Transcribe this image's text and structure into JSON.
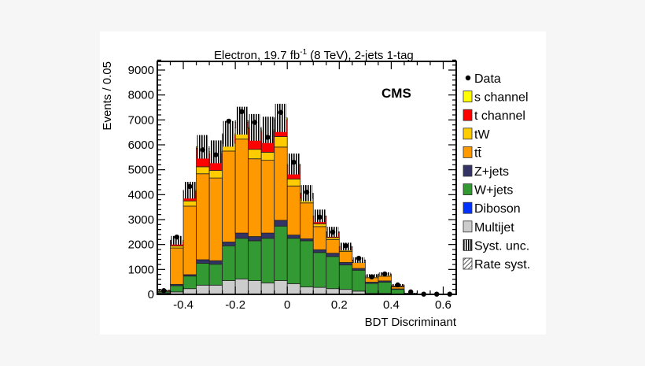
{
  "chart_data": {
    "type": "bar",
    "stacked": true,
    "title": "Electron, 19.7 fb",
    "title_sup": "-1",
    "title_rest": " (8 TeV), 2-jets 1-tag",
    "label": "CMS",
    "xlabel": "BDT Discriminant",
    "ylabel": "Events / 0.05",
    "xlim": [
      -0.5,
      0.65
    ],
    "ylim": [
      0,
      9500
    ],
    "bin_width": 0.05,
    "x_ticks": [
      "-0.4",
      "-0.2",
      "0",
      "0.2",
      "0.4",
      "0.6"
    ],
    "x_tick_values": [
      -0.4,
      -0.2,
      0,
      0.2,
      0.4,
      0.6
    ],
    "y_ticks": [
      "0",
      "1000",
      "2000",
      "3000",
      "4000",
      "5000",
      "6000",
      "7000",
      "8000",
      "9000"
    ],
    "y_tick_values": [
      0,
      1000,
      2000,
      3000,
      4000,
      5000,
      6000,
      7000,
      8000,
      9000
    ],
    "grid": false,
    "legend_placement": "right",
    "bin_edges_low": [
      -0.5,
      -0.45,
      -0.4,
      -0.35,
      -0.3,
      -0.25,
      -0.2,
      -0.15,
      -0.1,
      -0.05,
      0,
      0.05,
      0.1,
      0.15,
      0.2,
      0.25,
      0.3,
      0.35,
      0.4,
      0.45,
      0.5,
      0.55,
      0.6
    ],
    "series": [
      {
        "name": "Multijet",
        "color": "#cccccc",
        "values": [
          50,
          100,
          230,
          370,
          370,
          550,
          620,
          550,
          460,
          550,
          430,
          300,
          280,
          230,
          200,
          130,
          40,
          40,
          10,
          0,
          0,
          0,
          0
        ]
      },
      {
        "name": "Diboson",
        "color": "#0033ff",
        "values": [
          0,
          0,
          0,
          0,
          0,
          0,
          0,
          0,
          0,
          0,
          0,
          0,
          0,
          0,
          0,
          0,
          0,
          0,
          0,
          0,
          0,
          0,
          0
        ]
      },
      {
        "name": "W+jets",
        "color": "#339933",
        "values": [
          50,
          250,
          505,
          880,
          840,
          1400,
          1630,
          1600,
          1790,
          2190,
          1820,
          1850,
          1400,
          1290,
          980,
          840,
          400,
          450,
          190,
          40,
          10,
          0,
          0
        ]
      },
      {
        "name": "Z+jets",
        "color": "#333366",
        "values": [
          10,
          50,
          55,
          140,
          140,
          150,
          210,
          170,
          210,
          230,
          130,
          80,
          110,
          130,
          100,
          70,
          50,
          50,
          20,
          0,
          0,
          0,
          0
        ]
      },
      {
        "name": "tt̄",
        "color": "#ff9900",
        "values": [
          40,
          1460,
          2750,
          3450,
          3320,
          3650,
          3770,
          3120,
          2920,
          2940,
          1970,
          1440,
          930,
          550,
          440,
          240,
          180,
          190,
          80,
          10,
          0,
          0,
          0
        ]
      },
      {
        "name": "tW",
        "color": "#ffcc00",
        "values": [
          10,
          80,
          210,
          280,
          300,
          310,
          450,
          380,
          320,
          420,
          280,
          190,
          110,
          80,
          50,
          50,
          50,
          50,
          30,
          0,
          0,
          0,
          0
        ]
      },
      {
        "name": "t channel",
        "color": "#ff0000",
        "values": [
          10,
          180,
          370,
          740,
          680,
          320,
          230,
          830,
          840,
          680,
          540,
          160,
          290,
          210,
          130,
          40,
          30,
          40,
          50,
          0,
          0,
          0,
          0
        ]
      },
      {
        "name": "s channel",
        "color": "#ffff00",
        "values": [
          0,
          50,
          60,
          60,
          70,
          60,
          60,
          50,
          60,
          70,
          60,
          40,
          30,
          20,
          20,
          10,
          0,
          0,
          0,
          0,
          0,
          0,
          0
        ]
      }
    ],
    "data": {
      "name": "Data",
      "values": [
        150,
        2300,
        4330,
        5800,
        5600,
        6950,
        7330,
        6900,
        6300,
        7300,
        5300,
        4100,
        3100,
        2500,
        1950,
        1450,
        700,
        820,
        380,
        100,
        10,
        10,
        10
      ]
    },
    "syst_unc": {
      "name": "Syst. unc.",
      "relative": 0.08
    },
    "rate_syst": {
      "name": "Rate syst."
    },
    "legend": [
      "Data",
      "s channel",
      "t channel",
      "tW",
      "tt̄",
      "Z+jets",
      "W+jets",
      "Diboson",
      "Multijet",
      "Syst. unc.",
      "Rate syst."
    ]
  }
}
